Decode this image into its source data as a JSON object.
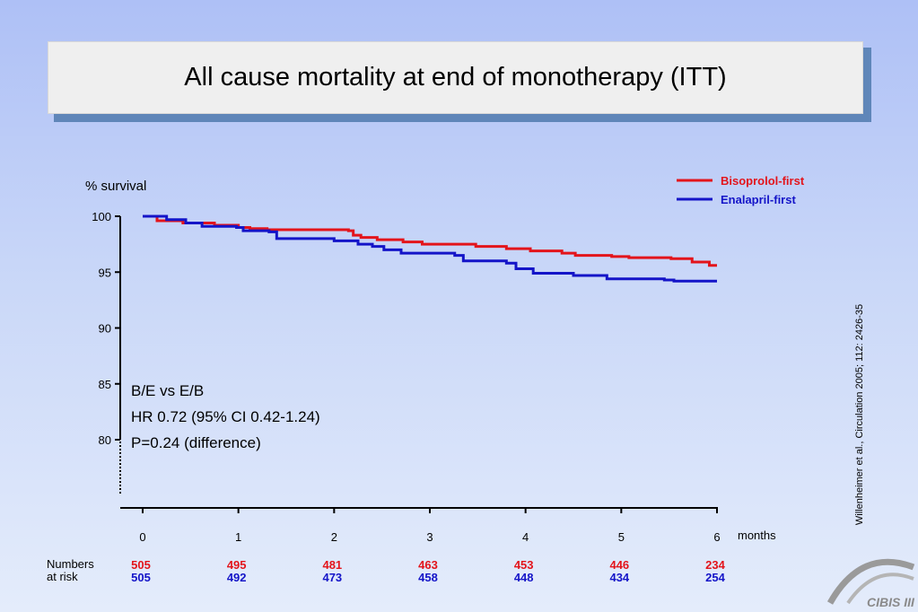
{
  "slide": {
    "title": "All cause mortality at end of monotherapy (ITT)",
    "citation": "Willenheimer et al., Circulation 2005; 112: 2426-35",
    "logo_text": "CIBIS III"
  },
  "chart_data": {
    "type": "line",
    "title": "",
    "ylabel": "% survival",
    "xlabel": "months",
    "ylim": [
      80,
      100
    ],
    "xlim": [
      0,
      6
    ],
    "y_ticks": [
      100,
      95,
      90,
      85,
      80
    ],
    "x_ticks": [
      0,
      1,
      2,
      3,
      4,
      5,
      6
    ],
    "y_axis_break": true,
    "grid": false,
    "legend_position": "top-right",
    "series": [
      {
        "name": "Bisoprolol-first",
        "color": "#e3141b",
        "step": true,
        "x": [
          0,
          0.15,
          0.42,
          0.75,
          1.0,
          1.12,
          1.3,
          2.15,
          2.2,
          2.28,
          2.45,
          2.72,
          2.92,
          3.48,
          3.8,
          4.05,
          4.38,
          4.52,
          4.9,
          5.08,
          5.3,
          5.42,
          5.52,
          5.74,
          5.92,
          6.0
        ],
        "y": [
          100,
          99.6,
          99.4,
          99.2,
          99.0,
          98.9,
          98.8,
          98.7,
          98.3,
          98.1,
          97.9,
          97.7,
          97.5,
          97.3,
          97.1,
          96.9,
          96.7,
          96.5,
          96.4,
          96.3,
          96.3,
          96.3,
          96.2,
          95.9,
          95.6,
          95.6
        ]
      },
      {
        "name": "Enalapril-first",
        "color": "#1414c8",
        "step": true,
        "x": [
          0,
          0.25,
          0.45,
          0.62,
          0.98,
          1.05,
          1.32,
          1.4,
          2.0,
          2.25,
          2.4,
          2.52,
          2.7,
          3.26,
          3.35,
          3.8,
          3.9,
          4.08,
          4.5,
          4.85,
          5.45,
          5.55,
          6.0
        ],
        "y": [
          100,
          99.7,
          99.4,
          99.1,
          99.0,
          98.7,
          98.6,
          98.0,
          97.8,
          97.5,
          97.3,
          97.0,
          96.7,
          96.5,
          96.0,
          95.8,
          95.3,
          94.9,
          94.7,
          94.4,
          94.3,
          94.2,
          94.2
        ]
      }
    ],
    "annotation": [
      "B/E vs E/B",
      "HR 0.72 (95% CI 0.42-1.24)",
      "P=0.24 (difference)"
    ],
    "numbers_at_risk": {
      "label_line1": "Numbers",
      "label_line2": "at risk",
      "bisoprolol": [
        "505",
        "495",
        "481",
        "463",
        "453",
        "446",
        "234"
      ],
      "enalapril": [
        "505",
        "492",
        "473",
        "458",
        "448",
        "434",
        "254"
      ]
    }
  }
}
